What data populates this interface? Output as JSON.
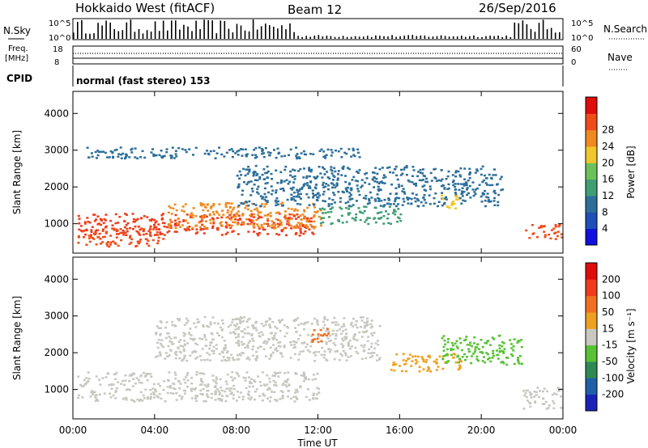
{
  "header": {
    "title": "Hokkaido West (fitACF)",
    "beam": "Beam 12",
    "date": "26/Sep/2016"
  },
  "top_panels": {
    "nsky_label": "N.Sky",
    "nsky_ticks": [
      "10^5",
      "10^0"
    ],
    "nsearch_label": "N.Search",
    "nsearch_ticks": [
      "10^5",
      "10^0"
    ],
    "freq_label_line1": "Freq.",
    "freq_label_line2": "[MHz]",
    "freq_ticks": [
      "18",
      "8"
    ],
    "nave_label": "Nave",
    "nave_ticks": [
      "60",
      "0"
    ],
    "cpid_label": "CPID",
    "cpid_text": "normal (fast stereo) 153"
  },
  "chart_data": [
    {
      "type": "heatmap",
      "name": "power",
      "xlabel": "",
      "ylabel": "Slant Range [km]",
      "y_ticks": [
        "1000",
        "2000",
        "3000",
        "4000"
      ],
      "ylim": [
        200,
        4600
      ],
      "xlim_hours": [
        0,
        24
      ],
      "colorbar_label": "Power [dB]",
      "colorbar_ticks": [
        "4",
        "8",
        "12",
        "16",
        "20",
        "24",
        "28"
      ],
      "colorbar_colors": [
        "#1010e0",
        "#1f4fb8",
        "#2d6f9a",
        "#3f9e74",
        "#6cc25a",
        "#f0c62a",
        "#f08a20",
        "#ef4c1a",
        "#e00b0b"
      ],
      "regions": [
        {
          "t0": 0.2,
          "t1": 11.8,
          "r0": 700,
          "r1": 1300,
          "color": "#ef3b1a"
        },
        {
          "t0": 0.2,
          "t1": 4.5,
          "r0": 400,
          "r1": 900,
          "color": "#ef4c1a"
        },
        {
          "t0": 4.5,
          "t1": 12.2,
          "r0": 900,
          "r1": 1600,
          "color": "#f08a20"
        },
        {
          "t0": 12,
          "t1": 16,
          "r0": 1000,
          "r1": 1500,
          "color": "#3f9e74"
        },
        {
          "t0": 8,
          "t1": 21,
          "r0": 1500,
          "r1": 2600,
          "color": "#2d6f9a"
        },
        {
          "t0": 18,
          "t1": 19,
          "r0": 1400,
          "r1": 1800,
          "color": "#f0c62a"
        },
        {
          "t0": 22,
          "t1": 23.9,
          "r0": 600,
          "r1": 1000,
          "color": "#ef4c1a"
        },
        {
          "t0": 0.5,
          "t1": 14,
          "r0": 2800,
          "r1": 3100,
          "color": "#2d6f9a"
        }
      ]
    },
    {
      "type": "heatmap",
      "name": "velocity",
      "xlabel": "Time UT",
      "ylabel": "Slant Range [km]",
      "x_ticks": [
        "00:00",
        "04:00",
        "08:00",
        "12:00",
        "16:00",
        "20:00",
        "00:00"
      ],
      "y_ticks": [
        "1000",
        "2000",
        "3000",
        "4000"
      ],
      "ylim": [
        200,
        4600
      ],
      "xlim_hours": [
        0,
        24
      ],
      "colorbar_label": "Velocity [m s⁻¹]",
      "colorbar_ticks": [
        "200",
        "100",
        "50",
        "15",
        "-15",
        "-50",
        "-100",
        "-200"
      ],
      "colorbar_colors": [
        "#1a22b8",
        "#1f5fa8",
        "#2e8a55",
        "#56c234",
        "#c8c8c0",
        "#f0a020",
        "#f07020",
        "#ef3b1a",
        "#e00b0b"
      ],
      "regions": [
        {
          "t0": 0.2,
          "t1": 12,
          "r0": 700,
          "r1": 1500,
          "color": "#c8c8c0"
        },
        {
          "t0": 4,
          "t1": 15,
          "r0": 1800,
          "r1": 3000,
          "color": "#c8c8c0"
        },
        {
          "t0": 15.5,
          "t1": 19,
          "r0": 1500,
          "r1": 2000,
          "color": "#f0a020"
        },
        {
          "t0": 11.5,
          "t1": 12.5,
          "r0": 2300,
          "r1": 2700,
          "color": "#f07020"
        },
        {
          "t0": 18,
          "t1": 22,
          "r0": 1700,
          "r1": 2500,
          "color": "#56c234"
        },
        {
          "t0": 22,
          "t1": 23.9,
          "r0": 500,
          "r1": 1100,
          "color": "#c8c8c0"
        }
      ]
    }
  ]
}
